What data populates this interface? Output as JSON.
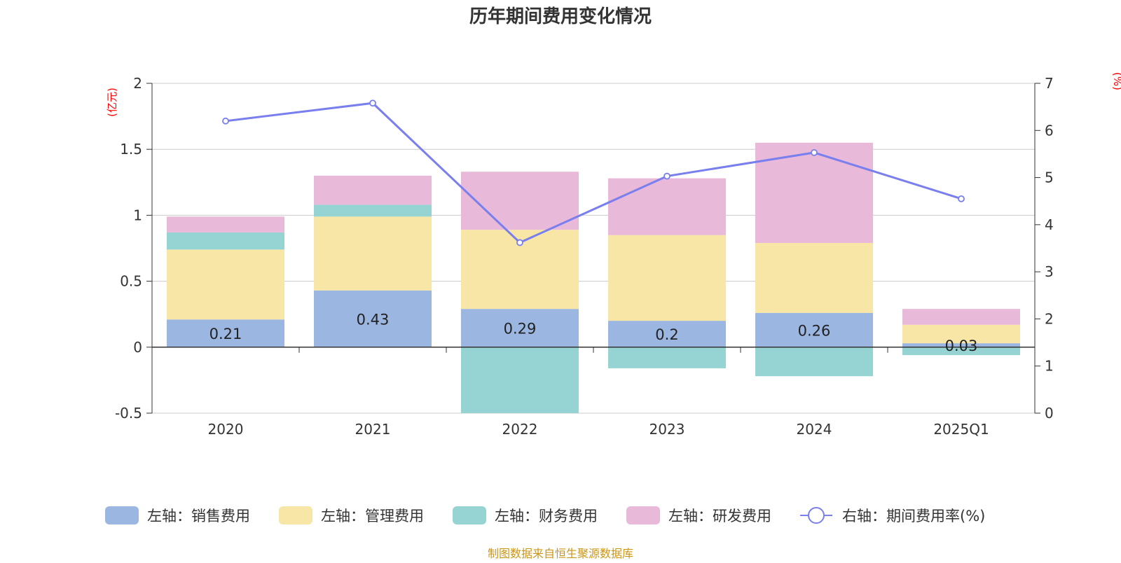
{
  "footer": {
    "source": "制图数据来自恒生聚源数据库"
  },
  "chart_data": {
    "type": "bar",
    "title": "历年期间费用变化情况",
    "ylabel": "(亿元)",
    "y2label": "(%)",
    "categories": [
      "2020",
      "2021",
      "2022",
      "2023",
      "2024",
      "2025Q1"
    ],
    "ylim": [
      -0.5,
      2
    ],
    "y_ticks": [
      "2",
      "1.5",
      "1",
      "0.5",
      "0",
      "-0.5"
    ],
    "y2lim": [
      0,
      7
    ],
    "y2_ticks": [
      "7",
      "6",
      "5",
      "4",
      "3",
      "2",
      "1",
      "0"
    ],
    "stacked": true,
    "grid": true,
    "legend_position": "bottom",
    "series": [
      {
        "name": "左轴：销售费用",
        "axis": "left",
        "color": "#9bb6e1",
        "values": [
          0.21,
          0.43,
          0.29,
          0.2,
          0.26,
          0.03
        ],
        "data_labels": [
          "0.21",
          "0.43",
          "0.29",
          "0.2",
          "0.26",
          "0.03"
        ]
      },
      {
        "name": "左轴：管理费用",
        "axis": "left",
        "color": "#f7e6a6",
        "values": [
          0.53,
          0.56,
          0.6,
          0.65,
          0.53,
          0.14
        ]
      },
      {
        "name": "左轴：财务费用",
        "axis": "left",
        "color": "#96d4d3",
        "values": [
          0.13,
          0.09,
          -0.5,
          -0.16,
          -0.22,
          -0.06
        ]
      },
      {
        "name": "左轴：研发费用",
        "axis": "left",
        "color": "#e8b9d9",
        "values": [
          0.12,
          0.22,
          0.44,
          0.43,
          0.76,
          0.12
        ]
      },
      {
        "name": "右轴：期间费用率(%)",
        "axis": "right",
        "type": "line",
        "color": "#7a7fee",
        "values": [
          6.2,
          6.58,
          3.62,
          5.03,
          5.53,
          4.55
        ]
      }
    ]
  }
}
